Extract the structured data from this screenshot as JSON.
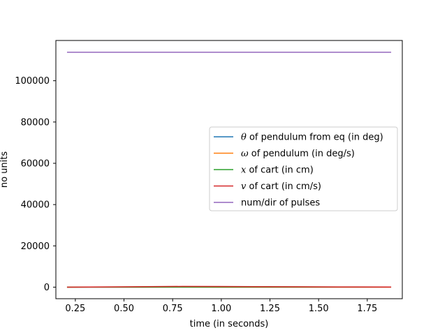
{
  "chart_data": {
    "type": "line",
    "title": "",
    "xlabel": "time (in seconds)",
    "ylabel": "no units",
    "xlim": [
      0.15,
      1.93
    ],
    "ylim": [
      -5600,
      119500
    ],
    "xticks": [
      0.25,
      0.5,
      0.75,
      1.0,
      1.25,
      1.5,
      1.75
    ],
    "xtick_labels": [
      "0.25",
      "0.50",
      "0.75",
      "1.00",
      "1.25",
      "1.50",
      "1.75"
    ],
    "yticks": [
      0,
      20000,
      40000,
      60000,
      80000,
      100000
    ],
    "ytick_labels": [
      "0",
      "20000",
      "40000",
      "60000",
      "80000",
      "100000"
    ],
    "grid": false,
    "legend_position": "center-right",
    "series": [
      {
        "name_symbol": "θ",
        "name_text": " of pendulum from eq (in deg)",
        "color": "#1f77b4",
        "x": [
          0.21,
          0.4,
          0.6,
          0.8,
          1.0,
          1.2,
          1.4,
          1.6,
          1.87
        ],
        "values": [
          2,
          5,
          8,
          10,
          11,
          10,
          8,
          6,
          4
        ]
      },
      {
        "name_symbol": "ω",
        "name_text": " of pendulum (in deg/s)",
        "color": "#ff7f0e",
        "x": [
          0.21,
          0.4,
          0.6,
          0.8,
          1.0,
          1.2,
          1.4,
          1.6,
          1.87
        ],
        "values": [
          40,
          30,
          20,
          10,
          0,
          -10,
          -15,
          -20,
          -25
        ]
      },
      {
        "name_symbol": "x",
        "name_text": " of cart (in cm)",
        "color": "#2ca02c",
        "x": [
          0.21,
          0.4,
          0.6,
          0.8,
          1.0,
          1.2,
          1.4,
          1.6,
          1.87
        ],
        "values": [
          0,
          10,
          30,
          50,
          60,
          60,
          55,
          50,
          45
        ]
      },
      {
        "name_symbol": "v",
        "name_text": " of cart  (in cm/s)",
        "color": "#d62728",
        "x": [
          0.21,
          0.4,
          0.6,
          0.8,
          1.0,
          1.2,
          1.4,
          1.6,
          1.87
        ],
        "values": [
          0,
          120,
          250,
          350,
          320,
          250,
          180,
          120,
          60
        ]
      },
      {
        "name_symbol": "",
        "name_text": "num/dir of pulses",
        "color": "#9467bd",
        "x": [
          0.21,
          0.4,
          0.6,
          0.8,
          1.0,
          1.2,
          1.4,
          1.6,
          1.87
        ],
        "values": [
          113800,
          113800,
          113800,
          113800,
          113800,
          113800,
          113800,
          113800,
          113800
        ]
      }
    ]
  }
}
